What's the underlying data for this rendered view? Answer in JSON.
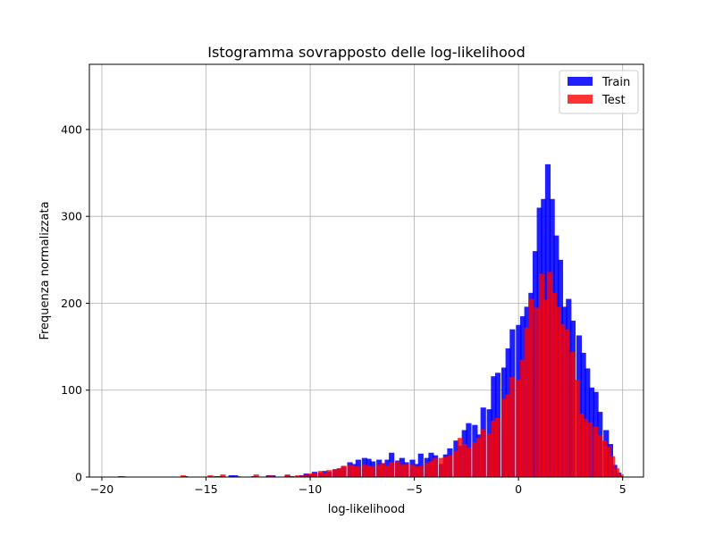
{
  "chart_data": {
    "type": "bar",
    "subtype": "overlaid-histogram",
    "title": "Istogramma sovrapposto delle log-likelihood",
    "xlabel": "log-likelihood",
    "ylabel": "Frequenza normalizzata",
    "xlim": [
      -20.6,
      6.0
    ],
    "ylim": [
      0,
      475
    ],
    "xticks": [
      -20,
      -15,
      -10,
      -5,
      0,
      5
    ],
    "yticks": [
      0,
      100,
      200,
      300,
      400
    ],
    "grid": true,
    "legend_position": "top-right",
    "bin_width": 0.247,
    "series": [
      {
        "name": "Train",
        "color": "#0000ff",
        "alpha": 0.88,
        "bins": [
          [
            -19.1,
            1
          ],
          [
            -16.0,
            1
          ],
          [
            -14.5,
            1
          ],
          [
            -14.3,
            1
          ],
          [
            -13.8,
            2
          ],
          [
            -13.6,
            2
          ],
          [
            -12.7,
            1
          ],
          [
            -12.0,
            2
          ],
          [
            -11.8,
            2
          ],
          [
            -11.1,
            2
          ],
          [
            -10.9,
            1
          ],
          [
            -10.4,
            2
          ],
          [
            -10.2,
            4
          ],
          [
            -10.0,
            3
          ],
          [
            -9.8,
            6
          ],
          [
            -9.5,
            5
          ],
          [
            -9.3,
            7
          ],
          [
            -9.1,
            6
          ],
          [
            -8.8,
            9
          ],
          [
            -8.6,
            10
          ],
          [
            -8.4,
            12
          ],
          [
            -8.1,
            17
          ],
          [
            -7.9,
            15
          ],
          [
            -7.7,
            20
          ],
          [
            -7.4,
            22
          ],
          [
            -7.2,
            21
          ],
          [
            -7.0,
            18
          ],
          [
            -6.7,
            20
          ],
          [
            -6.5,
            16
          ],
          [
            -6.3,
            20
          ],
          [
            -6.1,
            28
          ],
          [
            -5.8,
            19
          ],
          [
            -5.6,
            22
          ],
          [
            -5.4,
            17
          ],
          [
            -5.1,
            20
          ],
          [
            -4.9,
            15
          ],
          [
            -4.7,
            27
          ],
          [
            -4.4,
            22
          ],
          [
            -4.2,
            28
          ],
          [
            -4.0,
            25
          ],
          [
            -3.7,
            15
          ],
          [
            -3.5,
            26
          ],
          [
            -3.3,
            33
          ],
          [
            -3.0,
            42
          ],
          [
            -2.8,
            36
          ],
          [
            -2.6,
            54
          ],
          [
            -2.4,
            62
          ],
          [
            -2.1,
            60
          ],
          [
            -1.9,
            49
          ],
          [
            -1.7,
            80
          ],
          [
            -1.4,
            78
          ],
          [
            -1.2,
            116
          ],
          [
            -1.0,
            120
          ],
          [
            -0.7,
            126
          ],
          [
            -0.5,
            148
          ],
          [
            -0.3,
            170
          ],
          [
            0.0,
            175
          ],
          [
            0.2,
            185
          ],
          [
            0.4,
            196
          ],
          [
            0.6,
            212
          ],
          [
            0.8,
            260
          ],
          [
            1.0,
            310
          ],
          [
            1.2,
            320
          ],
          [
            1.4,
            360
          ],
          [
            1.6,
            320
          ],
          [
            1.8,
            278
          ],
          [
            2.0,
            250
          ],
          [
            2.2,
            196
          ],
          [
            2.4,
            205
          ],
          [
            2.6,
            180
          ],
          [
            2.9,
            163
          ],
          [
            3.1,
            143
          ],
          [
            3.3,
            125
          ],
          [
            3.5,
            103
          ],
          [
            3.7,
            98
          ],
          [
            3.9,
            75
          ],
          [
            4.2,
            54
          ],
          [
            4.4,
            38
          ],
          [
            4.6,
            14
          ],
          [
            4.8,
            5
          ]
        ]
      },
      {
        "name": "Test",
        "color": "#ff0000",
        "alpha": 0.8,
        "bins": [
          [
            -19.0,
            1
          ],
          [
            -16.1,
            2
          ],
          [
            -14.8,
            2
          ],
          [
            -14.2,
            3
          ],
          [
            -13.5,
            1
          ],
          [
            -12.6,
            3
          ],
          [
            -11.9,
            2
          ],
          [
            -11.1,
            3
          ],
          [
            -10.6,
            2
          ],
          [
            -10.3,
            2
          ],
          [
            -10.0,
            4
          ],
          [
            -9.8,
            5
          ],
          [
            -9.5,
            7
          ],
          [
            -9.3,
            5
          ],
          [
            -9.1,
            8
          ],
          [
            -8.8,
            9
          ],
          [
            -8.6,
            10
          ],
          [
            -8.4,
            13
          ],
          [
            -8.1,
            14
          ],
          [
            -7.9,
            13
          ],
          [
            -7.7,
            12
          ],
          [
            -7.4,
            14
          ],
          [
            -7.2,
            13
          ],
          [
            -7.0,
            12
          ],
          [
            -6.7,
            14
          ],
          [
            -6.5,
            16
          ],
          [
            -6.3,
            13
          ],
          [
            -6.1,
            17
          ],
          [
            -5.8,
            18
          ],
          [
            -5.6,
            14
          ],
          [
            -5.4,
            15
          ],
          [
            -5.1,
            14
          ],
          [
            -4.9,
            12
          ],
          [
            -4.7,
            13
          ],
          [
            -4.4,
            16
          ],
          [
            -4.2,
            18
          ],
          [
            -4.0,
            22
          ],
          [
            -3.7,
            22
          ],
          [
            -3.5,
            23
          ],
          [
            -3.3,
            25
          ],
          [
            -3.0,
            30
          ],
          [
            -2.8,
            45
          ],
          [
            -2.6,
            38
          ],
          [
            -2.4,
            34
          ],
          [
            -2.1,
            40
          ],
          [
            -1.9,
            45
          ],
          [
            -1.7,
            55
          ],
          [
            -1.4,
            50
          ],
          [
            -1.2,
            65
          ],
          [
            -1.0,
            68
          ],
          [
            -0.7,
            90
          ],
          [
            -0.5,
            95
          ],
          [
            -0.3,
            115
          ],
          [
            0.0,
            112
          ],
          [
            0.2,
            135
          ],
          [
            0.4,
            172
          ],
          [
            0.6,
            205
          ],
          [
            0.9,
            195
          ],
          [
            1.1,
            234
          ],
          [
            1.3,
            204
          ],
          [
            1.5,
            236
          ],
          [
            1.7,
            212
          ],
          [
            1.9,
            196
          ],
          [
            2.1,
            176
          ],
          [
            2.3,
            170
          ],
          [
            2.6,
            144
          ],
          [
            2.8,
            112
          ],
          [
            3.0,
            73
          ],
          [
            3.2,
            67
          ],
          [
            3.4,
            63
          ],
          [
            3.7,
            58
          ],
          [
            3.9,
            48
          ],
          [
            4.1,
            42
          ],
          [
            4.3,
            35
          ],
          [
            4.5,
            24
          ],
          [
            4.7,
            10
          ],
          [
            4.9,
            3
          ]
        ]
      }
    ]
  }
}
